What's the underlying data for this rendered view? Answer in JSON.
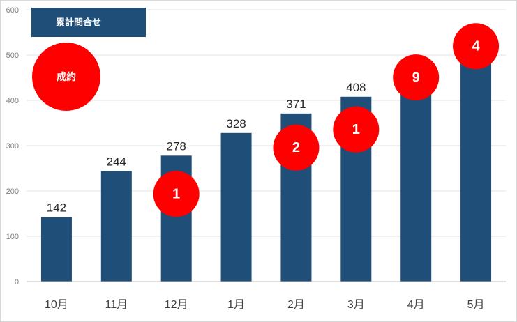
{
  "chart_data": {
    "type": "bar",
    "title_box": "累計問合せ",
    "marker_legend": "成約",
    "categories": [
      "10月",
      "11月",
      "12月",
      "1月",
      "2月",
      "3月",
      "4月",
      "5月"
    ],
    "values": [
      142,
      244,
      278,
      328,
      371,
      408,
      466,
      495
    ],
    "closed_deals": [
      null,
      null,
      1,
      null,
      2,
      1,
      9,
      4
    ],
    "ylim": [
      0,
      600
    ],
    "yticks": [
      0,
      100,
      200,
      300,
      400,
      500,
      600
    ],
    "grid": true,
    "colors": {
      "bar": "#1f4e79",
      "marker": "#ff0000",
      "title_box": "#1f4e79"
    }
  }
}
